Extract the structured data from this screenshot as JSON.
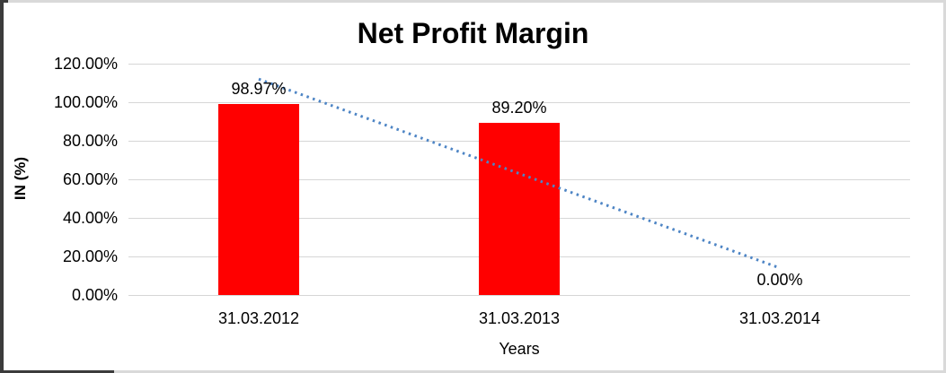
{
  "chart_data": {
    "type": "bar",
    "title": "Net Profit Margin",
    "xlabel": "Years",
    "ylabel": "IN (%)",
    "categories": [
      "31.03.2012",
      "31.03.2013",
      "31.03.2014"
    ],
    "values": [
      98.97,
      89.2,
      0
    ],
    "data_labels": [
      "98.97%",
      "89.20%",
      "0.00%"
    ],
    "yticks": [
      "120.00%",
      "100.00%",
      "80.00%",
      "60.00%",
      "40.00%",
      "20.00%",
      "0.00%"
    ],
    "ytick_values": [
      120,
      100,
      80,
      60,
      40,
      20,
      0
    ],
    "ylim": [
      0,
      120
    ],
    "grid": true,
    "legend": "none",
    "trendline": {
      "style": "dotted",
      "shape": "linear",
      "start_value": 112,
      "end_value": 14
    },
    "colors": {
      "bar": "#ff0000",
      "trendline": "#4e85c5",
      "gridline": "#d6d6d6",
      "text": "#000000",
      "frame_light": "#d9d9d9",
      "frame_dark": "#3b3b3b"
    }
  }
}
